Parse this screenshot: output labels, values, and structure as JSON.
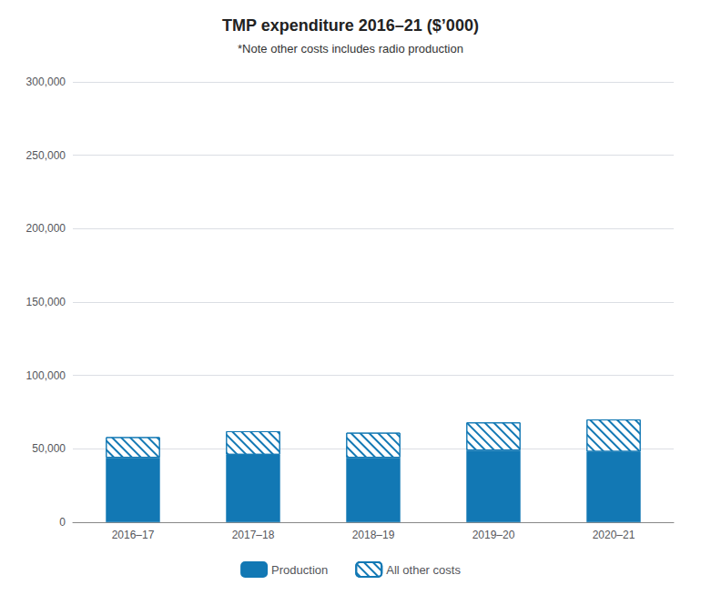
{
  "chart_data": {
    "type": "bar",
    "title": "TMP expenditure 2016–21 ($’000)",
    "subtitle": "*Note other costs includes radio production",
    "categories": [
      "2016–17",
      "2017–18",
      "2018–19",
      "2019–20",
      "2020–21"
    ],
    "series": [
      {
        "name": "Production",
        "color": "#1278b4",
        "values": [
          44000,
          46000,
          44000,
          49000,
          48000
        ]
      },
      {
        "name": "All other costs",
        "color": "#1278b4",
        "values": [
          14000,
          16000,
          17000,
          19000,
          22000
        ]
      }
    ],
    "stacked": true,
    "ylim": [
      0,
      300000
    ],
    "yticks": [
      0,
      {
        "value": 50000,
        "label": "50,000"
      },
      {
        "value": 100000,
        "label": "100,000"
      },
      {
        "value": 150000,
        "label": "150,000"
      },
      {
        "value": 200000,
        "label": "200,000"
      },
      {
        "value": 250000,
        "label": "250,000"
      },
      {
        "value": 300000,
        "label": "300,000"
      }
    ],
    "grid": true,
    "legend": "bottom"
  }
}
